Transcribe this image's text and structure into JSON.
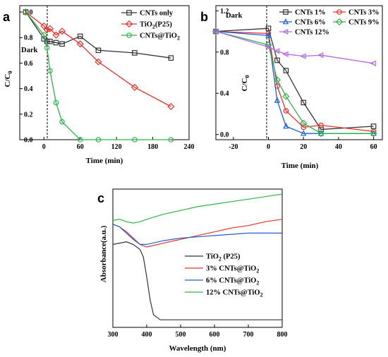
{
  "chart_data": [
    {
      "panel": "a",
      "type": "line",
      "xlabel": "Time (min)",
      "ylabel": "C/C0",
      "xlim": [
        -40,
        240
      ],
      "ylim": [
        0,
        1.05
      ],
      "xticks": [
        0,
        60,
        120,
        180,
        240
      ],
      "yticks": [
        0.0,
        0.2,
        0.4,
        0.6,
        0.8,
        1.0
      ],
      "annotation": "Dark",
      "legend_position": "top-right",
      "series": [
        {
          "name": "CNTs only",
          "color": "#333333",
          "marker": "square",
          "x": [
            -30,
            0,
            5,
            10,
            20,
            30,
            60,
            90,
            150,
            210
          ],
          "y": [
            1.0,
            0.79,
            0.77,
            0.77,
            0.76,
            0.75,
            0.81,
            0.7,
            0.68,
            0.64
          ]
        },
        {
          "name": "TiO2(P25)",
          "color": "#e8302a",
          "marker": "diamond",
          "x": [
            -30,
            0,
            5,
            10,
            20,
            30,
            60,
            90,
            150,
            210
          ],
          "y": [
            1.0,
            0.89,
            0.86,
            0.87,
            0.82,
            0.85,
            0.75,
            0.61,
            0.41,
            0.26
          ]
        },
        {
          "name": "CNTs@TiO2",
          "color": "#2cb34a",
          "marker": "circle",
          "x": [
            -30,
            0,
            5,
            10,
            20,
            30,
            60,
            90,
            150,
            210
          ],
          "y": [
            1.0,
            0.82,
            0.72,
            0.54,
            0.29,
            0.14,
            0.0,
            0.0,
            0.0,
            0.0
          ]
        }
      ]
    },
    {
      "panel": "b",
      "type": "line",
      "xlabel": "Time (min)",
      "ylabel": "C/C0",
      "xlim": [
        -30,
        65
      ],
      "ylim": [
        -0.05,
        1.25
      ],
      "xticks": [
        -20,
        0,
        20,
        40,
        60
      ],
      "yticks": [
        0.0,
        0.4,
        0.8,
        1.2
      ],
      "annotation": "Dark",
      "legend_position": "top",
      "series": [
        {
          "name": "CNTs 1%",
          "color": "#333333",
          "marker": "square",
          "x": [
            -30,
            0,
            5,
            10,
            20,
            30,
            60
          ],
          "y": [
            1.0,
            1.03,
            0.72,
            0.62,
            0.31,
            0.05,
            0.08
          ]
        },
        {
          "name": "CNTs 3%",
          "color": "#e8302a",
          "marker": "circle",
          "x": [
            -30,
            0,
            5,
            10,
            20,
            30,
            60
          ],
          "y": [
            1.0,
            0.98,
            0.47,
            0.23,
            0.07,
            0.09,
            0.03
          ]
        },
        {
          "name": "CNTs 6%",
          "color": "#1f5fd6",
          "marker": "triangle",
          "x": [
            -30,
            0,
            5,
            10,
            20,
            30,
            60
          ],
          "y": [
            1.0,
            0.96,
            0.33,
            0.08,
            0.01,
            0.01,
            0.01
          ]
        },
        {
          "name": "CNTs 9%",
          "color": "#2cb34a",
          "marker": "diamond",
          "x": [
            -30,
            0,
            5,
            10,
            20,
            30,
            60
          ],
          "y": [
            1.0,
            0.87,
            0.53,
            0.37,
            0.11,
            0.01,
            0.01
          ]
        },
        {
          "name": "CNTs 12%",
          "color": "#b56bde",
          "marker": "triangle-left",
          "x": [
            -30,
            0,
            5,
            10,
            20,
            30,
            60
          ],
          "y": [
            1.0,
            0.85,
            0.81,
            0.78,
            0.76,
            0.77,
            0.69
          ]
        }
      ]
    },
    {
      "panel": "c",
      "type": "line",
      "xlabel": "Wavelength (nm)",
      "ylabel": "Absorbance(a.u.)",
      "xlim": [
        300,
        800
      ],
      "xticks": [
        300,
        400,
        500,
        600,
        700,
        800
      ],
      "legend_position": "right",
      "series": [
        {
          "name": "TiO2 (P25)",
          "color": "#333333",
          "x": [
            300,
            320,
            340,
            360,
            380,
            390,
            400,
            410,
            420,
            440,
            500,
            600,
            700,
            800
          ],
          "y": [
            0.66,
            0.67,
            0.68,
            0.66,
            0.62,
            0.56,
            0.4,
            0.22,
            0.1,
            0.06,
            0.06,
            0.06,
            0.06,
            0.06
          ]
        },
        {
          "name": "3% CNTs@TiO2",
          "color": "#e8302a",
          "x": [
            300,
            320,
            340,
            360,
            380,
            400,
            450,
            500,
            550,
            600,
            650,
            700,
            750,
            800
          ],
          "y": [
            0.82,
            0.8,
            0.76,
            0.71,
            0.66,
            0.64,
            0.67,
            0.7,
            0.73,
            0.76,
            0.79,
            0.81,
            0.84,
            0.86
          ]
        },
        {
          "name": "6% CNTs@TiO2",
          "color": "#1f5fd6",
          "x": [
            300,
            320,
            340,
            360,
            380,
            400,
            450,
            500,
            550,
            600,
            650,
            700,
            750,
            800
          ],
          "y": [
            0.82,
            0.8,
            0.75,
            0.7,
            0.66,
            0.66,
            0.69,
            0.71,
            0.72,
            0.73,
            0.74,
            0.75,
            0.75,
            0.75
          ]
        },
        {
          "name": "12% CNTs@TiO2",
          "color": "#2cb34a",
          "x": [
            300,
            320,
            340,
            360,
            380,
            400,
            450,
            500,
            550,
            600,
            650,
            700,
            750,
            800
          ],
          "y": [
            0.85,
            0.86,
            0.84,
            0.83,
            0.84,
            0.86,
            0.9,
            0.93,
            0.96,
            0.98,
            1.0,
            1.02,
            1.04,
            1.06
          ]
        }
      ]
    }
  ],
  "labels": {
    "a": {
      "letter": "a",
      "ylabel_main": "C/C",
      "ylabel_sub": "0"
    },
    "b": {
      "letter": "b",
      "ylabel_main": "C/C",
      "ylabel_sub": "0"
    },
    "c": {
      "letter": "c"
    }
  }
}
